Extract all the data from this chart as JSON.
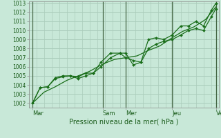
{
  "xlabel": "Pression niveau de la mer( hPa )",
  "bg_color": "#c8e8d8",
  "plot_bg_color": "#c8e8d8",
  "grid_color": "#aaccbb",
  "line_color": "#1a6e1a",
  "marker_color": "#1a6e1a",
  "ylim": [
    1001.5,
    1013.2
  ],
  "yticks": [
    1002,
    1003,
    1004,
    1005,
    1006,
    1007,
    1008,
    1009,
    1010,
    1011,
    1012,
    1013
  ],
  "day_labels": [
    "Mar",
    "Sam",
    "Mer",
    "Jeu",
    "Ven"
  ],
  "day_positions": [
    0.02,
    0.39,
    0.51,
    0.755,
    0.985
  ],
  "vline_positions": [
    0.02,
    0.39,
    0.51,
    0.755,
    0.985
  ],
  "smooth_x": [
    0.02,
    0.08,
    0.14,
    0.2,
    0.26,
    0.32,
    0.39,
    0.45,
    0.51,
    0.57,
    0.63,
    0.69,
    0.755,
    0.81,
    0.87,
    0.93,
    0.985
  ],
  "smooth_y": [
    1002.0,
    1003.2,
    1003.8,
    1004.5,
    1005.0,
    1005.5,
    1006.3,
    1006.8,
    1007.0,
    1007.2,
    1007.8,
    1008.3,
    1009.2,
    1009.9,
    1010.4,
    1011.2,
    1012.6
  ],
  "line1_x": [
    0.02,
    0.06,
    0.1,
    0.14,
    0.18,
    0.22,
    0.26,
    0.3,
    0.34,
    0.38,
    0.43,
    0.48,
    0.51,
    0.55,
    0.59,
    0.63,
    0.67,
    0.71,
    0.755,
    0.8,
    0.84,
    0.88,
    0.92,
    0.96,
    0.985
  ],
  "line1_y": [
    1002.0,
    1003.7,
    1003.8,
    1004.7,
    1004.9,
    1005.0,
    1004.9,
    1005.3,
    1005.3,
    1006.0,
    1007.0,
    1007.5,
    1007.0,
    1006.7,
    1006.5,
    1008.0,
    1008.5,
    1008.8,
    1009.0,
    1009.5,
    1010.0,
    1010.2,
    1010.0,
    1011.5,
    1012.4
  ],
  "line2_x": [
    0.02,
    0.06,
    0.1,
    0.14,
    0.18,
    0.22,
    0.26,
    0.3,
    0.34,
    0.38,
    0.43,
    0.48,
    0.51,
    0.55,
    0.59,
    0.63,
    0.67,
    0.71,
    0.755,
    0.8,
    0.84,
    0.88,
    0.92,
    0.96,
    0.985
  ],
  "line2_y": [
    1002.0,
    1003.7,
    1003.8,
    1004.8,
    1005.0,
    1005.0,
    1004.7,
    1005.0,
    1005.3,
    1006.5,
    1007.5,
    1007.5,
    1007.5,
    1006.2,
    1006.5,
    1009.0,
    1009.2,
    1009.0,
    1009.5,
    1010.5,
    1010.5,
    1011.0,
    1010.5,
    1012.2,
    1013.0
  ]
}
